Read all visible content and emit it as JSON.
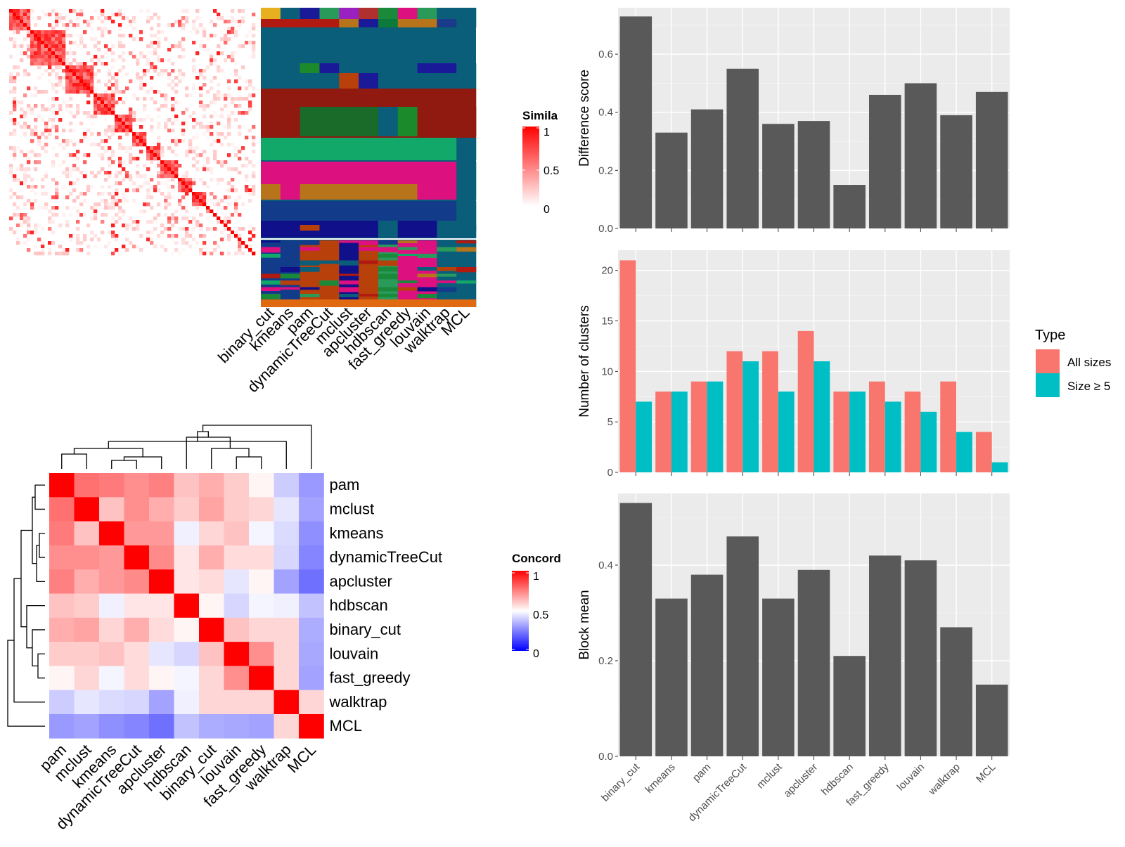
{
  "methods_signature": [
    "binary_cut",
    "kmeans",
    "pam",
    "dynamicTreeCut",
    "mclust",
    "apcluster",
    "hdbscan",
    "fast_greedy",
    "louvain",
    "walktrap",
    "MCL"
  ],
  "methods_concordance": [
    "pam",
    "mclust",
    "kmeans",
    "dynamicTreeCut",
    "apcluster",
    "hdbscan",
    "binary_cut",
    "louvain",
    "fast_greedy",
    "walktrap",
    "MCL"
  ],
  "similarity_legend": {
    "title": "Simila",
    "ticks": [
      "1",
      "0.5",
      "0"
    ],
    "colors": [
      "#ff0000",
      "#ffffff"
    ]
  },
  "concordance_legend": {
    "title": "Concord",
    "ticks": [
      "1",
      "0.5",
      "0"
    ],
    "colors": [
      "#ff0000",
      "#ffffff",
      "#0000ff"
    ]
  },
  "chart_data": [
    {
      "type": "heatmap",
      "title": "",
      "description_values": "term similarity matrix, values 0-1",
      "size": 70
    },
    {
      "type": "heatmap",
      "title": "",
      "xlabels": [
        "binary_cut",
        "kmeans",
        "pam",
        "dynamicTreeCut",
        "mclust",
        "apcluster",
        "hdbscan",
        "fast_greedy",
        "louvain",
        "walktrap",
        "MCL"
      ]
    },
    {
      "type": "heatmap",
      "title": "",
      "rows": [
        "pam",
        "mclust",
        "kmeans",
        "dynamicTreeCut",
        "apcluster",
        "hdbscan",
        "binary_cut",
        "louvain",
        "fast_greedy",
        "walktrap",
        "MCL"
      ],
      "cols": [
        "pam",
        "mclust",
        "kmeans",
        "dynamicTreeCut",
        "apcluster",
        "hdbscan",
        "binary_cut",
        "louvain",
        "fast_greedy",
        "walktrap",
        "MCL"
      ],
      "values": [
        [
          1.0,
          0.78,
          0.76,
          0.72,
          0.75,
          0.62,
          0.66,
          0.6,
          0.52,
          0.4,
          0.3
        ],
        [
          0.78,
          1.0,
          0.62,
          0.72,
          0.66,
          0.6,
          0.68,
          0.6,
          0.58,
          0.45,
          0.32
        ],
        [
          0.76,
          0.62,
          1.0,
          0.7,
          0.7,
          0.47,
          0.58,
          0.62,
          0.48,
          0.43,
          0.28
        ],
        [
          0.72,
          0.72,
          0.7,
          1.0,
          0.73,
          0.55,
          0.66,
          0.57,
          0.57,
          0.42,
          0.26
        ],
        [
          0.75,
          0.66,
          0.7,
          0.73,
          1.0,
          0.55,
          0.57,
          0.45,
          0.52,
          0.32,
          0.22
        ],
        [
          0.62,
          0.6,
          0.47,
          0.55,
          0.55,
          1.0,
          0.52,
          0.42,
          0.48,
          0.47,
          0.38
        ],
        [
          0.66,
          0.68,
          0.58,
          0.66,
          0.57,
          0.52,
          1.0,
          0.62,
          0.58,
          0.58,
          0.34
        ],
        [
          0.6,
          0.6,
          0.62,
          0.57,
          0.45,
          0.42,
          0.62,
          1.0,
          0.72,
          0.58,
          0.33
        ],
        [
          0.52,
          0.58,
          0.48,
          0.57,
          0.52,
          0.48,
          0.58,
          0.72,
          1.0,
          0.58,
          0.32
        ],
        [
          0.4,
          0.45,
          0.43,
          0.42,
          0.32,
          0.47,
          0.58,
          0.58,
          0.58,
          1.0,
          0.58
        ],
        [
          0.3,
          0.32,
          0.28,
          0.26,
          0.22,
          0.38,
          0.34,
          0.33,
          0.32,
          0.58,
          1.0
        ]
      ]
    },
    {
      "type": "bar",
      "categories": [
        "binary_cut",
        "kmeans",
        "pam",
        "dynamicTreeCut",
        "mclust",
        "apcluster",
        "hdbscan",
        "fast_greedy",
        "louvain",
        "walktrap",
        "MCL"
      ],
      "values": [
        0.73,
        0.33,
        0.41,
        0.55,
        0.36,
        0.37,
        0.15,
        0.46,
        0.5,
        0.39,
        0.47
      ],
      "xlabel": "",
      "ylabel": "Difference score",
      "ylim": [
        0,
        0.76
      ],
      "yticks": [
        "0.0",
        "0.2",
        "0.4",
        "0.6"
      ],
      "grid": true
    },
    {
      "type": "bar",
      "categories": [
        "binary_cut",
        "kmeans",
        "pam",
        "dynamicTreeCut",
        "mclust",
        "apcluster",
        "hdbscan",
        "fast_greedy",
        "louvain",
        "walktrap",
        "MCL"
      ],
      "series": [
        {
          "name": "All sizes",
          "values": [
            21,
            8,
            9,
            12,
            12,
            14,
            8,
            9,
            8,
            9,
            4
          ],
          "color": "#F8766D"
        },
        {
          "name": "Size ≥ 5",
          "values": [
            7,
            8,
            9,
            11,
            8,
            11,
            8,
            7,
            6,
            4,
            1
          ],
          "color": "#00BFC4"
        }
      ],
      "xlabel": "",
      "ylabel": "Number of clusters",
      "ylim": [
        0,
        22
      ],
      "yticks": [
        "0",
        "5",
        "10",
        "15",
        "20"
      ],
      "grid": true,
      "legend_title": "Type",
      "legend_position": "right"
    },
    {
      "type": "bar",
      "categories": [
        "binary_cut",
        "kmeans",
        "pam",
        "dynamicTreeCut",
        "mclust",
        "apcluster",
        "hdbscan",
        "fast_greedy",
        "louvain",
        "walktrap",
        "MCL"
      ],
      "values": [
        0.53,
        0.33,
        0.38,
        0.46,
        0.33,
        0.39,
        0.21,
        0.42,
        0.41,
        0.27,
        0.15
      ],
      "xlabel": "",
      "ylabel": "Block mean",
      "ylim": [
        0,
        0.55
      ],
      "yticks": [
        "0.0",
        "0.2",
        "0.4"
      ],
      "grid": true
    }
  ]
}
